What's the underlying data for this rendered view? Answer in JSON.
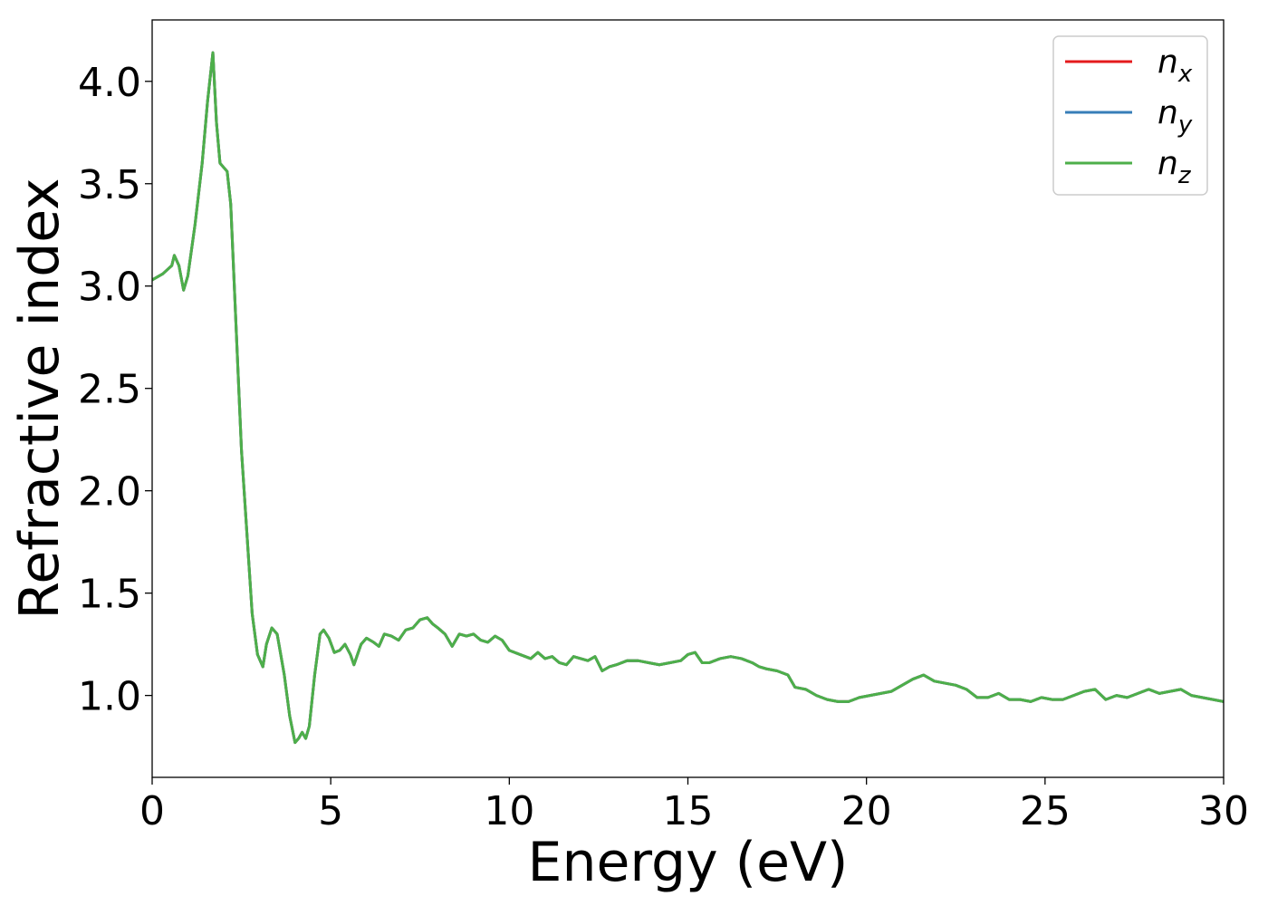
{
  "chart_data": {
    "type": "line",
    "title": "",
    "xlabel": "Energy (eV)",
    "ylabel": "Refractive index",
    "xlim": [
      0,
      30
    ],
    "ylim": [
      0.6,
      4.3
    ],
    "xticks": [
      0,
      5,
      10,
      15,
      20,
      25,
      30
    ],
    "xtick_labels": [
      "0",
      "5",
      "10",
      "15",
      "20",
      "25",
      "30"
    ],
    "yticks": [
      1.0,
      1.5,
      2.0,
      2.5,
      3.0,
      3.5,
      4.0
    ],
    "ytick_labels": [
      "1.0",
      "1.5",
      "2.0",
      "2.5",
      "3.0",
      "3.5",
      "4.0"
    ],
    "grid": false,
    "legend_position": "top-right",
    "x": [
      0,
      0.3,
      0.55,
      0.62,
      0.75,
      0.88,
      1.0,
      1.2,
      1.4,
      1.55,
      1.7,
      1.8,
      1.9,
      2.0,
      2.1,
      2.2,
      2.3,
      2.4,
      2.5,
      2.65,
      2.8,
      2.95,
      3.1,
      3.2,
      3.35,
      3.5,
      3.6,
      3.7,
      3.85,
      4.0,
      4.1,
      4.2,
      4.3,
      4.4,
      4.55,
      4.7,
      4.8,
      4.95,
      5.1,
      5.25,
      5.4,
      5.55,
      5.65,
      5.75,
      5.85,
      6.0,
      6.2,
      6.35,
      6.5,
      6.7,
      6.9,
      7.1,
      7.3,
      7.5,
      7.7,
      7.85,
      8.0,
      8.2,
      8.4,
      8.6,
      8.8,
      9.0,
      9.2,
      9.4,
      9.6,
      9.8,
      10.0,
      10.3,
      10.6,
      10.8,
      11.0,
      11.2,
      11.4,
      11.6,
      11.8,
      12.0,
      12.2,
      12.4,
      12.6,
      12.8,
      13.0,
      13.3,
      13.6,
      13.9,
      14.2,
      14.5,
      14.8,
      15.0,
      15.2,
      15.4,
      15.6,
      15.9,
      16.2,
      16.5,
      16.8,
      17.0,
      17.2,
      17.5,
      17.8,
      18.0,
      18.3,
      18.6,
      18.9,
      19.2,
      19.5,
      19.8,
      20.1,
      20.4,
      20.7,
      21.0,
      21.3,
      21.6,
      21.9,
      22.2,
      22.5,
      22.8,
      23.1,
      23.4,
      23.7,
      24.0,
      24.3,
      24.6,
      24.9,
      25.2,
      25.5,
      25.8,
      26.1,
      26.4,
      26.7,
      27.0,
      27.3,
      27.6,
      27.9,
      28.2,
      28.5,
      28.8,
      29.1,
      29.4,
      29.7,
      30.0
    ],
    "series": [
      {
        "name": "n_x",
        "color": "#e41a1c",
        "values": [
          3.03,
          3.06,
          3.1,
          3.15,
          3.1,
          2.98,
          3.05,
          3.3,
          3.6,
          3.9,
          4.14,
          3.8,
          3.6,
          3.58,
          3.56,
          3.4,
          3.0,
          2.6,
          2.2,
          1.8,
          1.4,
          1.2,
          1.14,
          1.25,
          1.33,
          1.3,
          1.2,
          1.1,
          0.9,
          0.77,
          0.79,
          0.82,
          0.79,
          0.85,
          1.1,
          1.3,
          1.32,
          1.28,
          1.21,
          1.22,
          1.25,
          1.2,
          1.15,
          1.2,
          1.25,
          1.28,
          1.26,
          1.24,
          1.3,
          1.29,
          1.27,
          1.32,
          1.33,
          1.37,
          1.38,
          1.35,
          1.33,
          1.3,
          1.24,
          1.3,
          1.29,
          1.3,
          1.27,
          1.26,
          1.29,
          1.27,
          1.22,
          1.2,
          1.18,
          1.21,
          1.18,
          1.19,
          1.16,
          1.15,
          1.19,
          1.18,
          1.17,
          1.19,
          1.12,
          1.14,
          1.15,
          1.17,
          1.17,
          1.16,
          1.15,
          1.16,
          1.17,
          1.2,
          1.21,
          1.16,
          1.16,
          1.18,
          1.19,
          1.18,
          1.16,
          1.14,
          1.13,
          1.12,
          1.1,
          1.04,
          1.03,
          1.0,
          0.98,
          0.97,
          0.97,
          0.99,
          1.0,
          1.01,
          1.02,
          1.05,
          1.08,
          1.1,
          1.07,
          1.06,
          1.05,
          1.03,
          0.99,
          0.99,
          1.01,
          0.98,
          0.98,
          0.97,
          0.99,
          0.98,
          0.98,
          1.0,
          1.02,
          1.03,
          0.98,
          1.0,
          0.99,
          1.01,
          1.03,
          1.01,
          1.02,
          1.03,
          1.0,
          0.99,
          0.98,
          0.97
        ]
      },
      {
        "name": "n_y",
        "color": "#377eb8",
        "values": [
          3.03,
          3.06,
          3.1,
          3.15,
          3.1,
          2.98,
          3.05,
          3.3,
          3.6,
          3.9,
          4.14,
          3.8,
          3.6,
          3.58,
          3.56,
          3.4,
          3.0,
          2.6,
          2.2,
          1.8,
          1.4,
          1.2,
          1.14,
          1.25,
          1.33,
          1.3,
          1.2,
          1.1,
          0.9,
          0.77,
          0.79,
          0.82,
          0.79,
          0.85,
          1.1,
          1.3,
          1.32,
          1.28,
          1.21,
          1.22,
          1.25,
          1.2,
          1.15,
          1.2,
          1.25,
          1.28,
          1.26,
          1.24,
          1.3,
          1.29,
          1.27,
          1.32,
          1.33,
          1.37,
          1.38,
          1.35,
          1.33,
          1.3,
          1.24,
          1.3,
          1.29,
          1.3,
          1.27,
          1.26,
          1.29,
          1.27,
          1.22,
          1.2,
          1.18,
          1.21,
          1.18,
          1.19,
          1.16,
          1.15,
          1.19,
          1.18,
          1.17,
          1.19,
          1.12,
          1.14,
          1.15,
          1.17,
          1.17,
          1.16,
          1.15,
          1.16,
          1.17,
          1.2,
          1.21,
          1.16,
          1.16,
          1.18,
          1.19,
          1.18,
          1.16,
          1.14,
          1.13,
          1.12,
          1.1,
          1.04,
          1.03,
          1.0,
          0.98,
          0.97,
          0.97,
          0.99,
          1.0,
          1.01,
          1.02,
          1.05,
          1.08,
          1.1,
          1.07,
          1.06,
          1.05,
          1.03,
          0.99,
          0.99,
          1.01,
          0.98,
          0.98,
          0.97,
          0.99,
          0.98,
          0.98,
          1.0,
          1.02,
          1.03,
          0.98,
          1.0,
          0.99,
          1.01,
          1.03,
          1.01,
          1.02,
          1.03,
          1.0,
          0.99,
          0.98,
          0.97
        ]
      },
      {
        "name": "n_z",
        "color": "#4daf4a",
        "values": [
          3.03,
          3.06,
          3.1,
          3.15,
          3.1,
          2.98,
          3.05,
          3.3,
          3.6,
          3.9,
          4.14,
          3.8,
          3.6,
          3.58,
          3.56,
          3.4,
          3.0,
          2.6,
          2.2,
          1.8,
          1.4,
          1.2,
          1.14,
          1.25,
          1.33,
          1.3,
          1.2,
          1.1,
          0.9,
          0.77,
          0.79,
          0.82,
          0.79,
          0.85,
          1.1,
          1.3,
          1.32,
          1.28,
          1.21,
          1.22,
          1.25,
          1.2,
          1.15,
          1.2,
          1.25,
          1.28,
          1.26,
          1.24,
          1.3,
          1.29,
          1.27,
          1.32,
          1.33,
          1.37,
          1.38,
          1.35,
          1.33,
          1.3,
          1.24,
          1.3,
          1.29,
          1.3,
          1.27,
          1.26,
          1.29,
          1.27,
          1.22,
          1.2,
          1.18,
          1.21,
          1.18,
          1.19,
          1.16,
          1.15,
          1.19,
          1.18,
          1.17,
          1.19,
          1.12,
          1.14,
          1.15,
          1.17,
          1.17,
          1.16,
          1.15,
          1.16,
          1.17,
          1.2,
          1.21,
          1.16,
          1.16,
          1.18,
          1.19,
          1.18,
          1.16,
          1.14,
          1.13,
          1.12,
          1.1,
          1.04,
          1.03,
          1.0,
          0.98,
          0.97,
          0.97,
          0.99,
          1.0,
          1.01,
          1.02,
          1.05,
          1.08,
          1.1,
          1.07,
          1.06,
          1.05,
          1.03,
          0.99,
          0.99,
          1.01,
          0.98,
          0.98,
          0.97,
          0.99,
          0.98,
          0.98,
          1.0,
          1.02,
          1.03,
          0.98,
          1.0,
          0.99,
          1.01,
          1.03,
          1.01,
          1.02,
          1.03,
          1.0,
          0.99,
          0.98,
          0.97
        ]
      }
    ],
    "legend": [
      {
        "base": "n",
        "sub": "x",
        "color": "#e41a1c"
      },
      {
        "base": "n",
        "sub": "y",
        "color": "#377eb8"
      },
      {
        "base": "n",
        "sub": "z",
        "color": "#4daf4a"
      }
    ]
  }
}
